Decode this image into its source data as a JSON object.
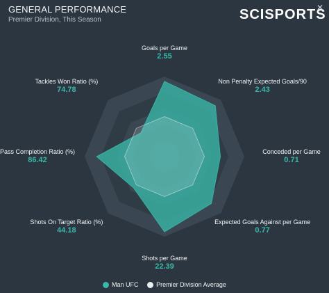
{
  "header": {
    "title": "GENERAL PERFORMANCE",
    "subtitle": "Premier Division, This Season",
    "brand": "SCISPORTS",
    "close_glyph": "✕"
  },
  "colors": {
    "team": "#3ab7a8",
    "average": "#e9eef2",
    "ring_dark": "#2f3b45",
    "ring_light": "#3a4752"
  },
  "legend": {
    "team_label": "Man UFC",
    "average_label": "Premier Division Average"
  },
  "chart_data": {
    "type": "radar",
    "title": "GENERAL PERFORMANCE",
    "axes": [
      {
        "label": "Goals per Game",
        "value": "2.55"
      },
      {
        "label": "Non Penalty Expected Goals/90",
        "value": "2.43"
      },
      {
        "label": "Conceded per Game",
        "value": "0.71"
      },
      {
        "label": "Expected Goals Against per Game",
        "value": "0.77"
      },
      {
        "label": "Shots per Game",
        "value": "22.39"
      },
      {
        "label": "Shots On Target Ratio (%)",
        "value": "44.18"
      },
      {
        "label": "Pass Completion Ratio (%)",
        "value": "86.42"
      },
      {
        "label": "Tackles Won Ratio (%)",
        "value": "74.78"
      }
    ],
    "series": [
      {
        "name": "Man UFC",
        "normalized": [
          0.94,
          0.9,
          0.7,
          0.83,
          0.94,
          0.55,
          0.85,
          0.42
        ]
      },
      {
        "name": "Premier Division Average",
        "normalized": [
          0.5,
          0.5,
          0.5,
          0.5,
          0.5,
          0.5,
          0.5,
          0.5
        ]
      }
    ],
    "rings": 5
  }
}
